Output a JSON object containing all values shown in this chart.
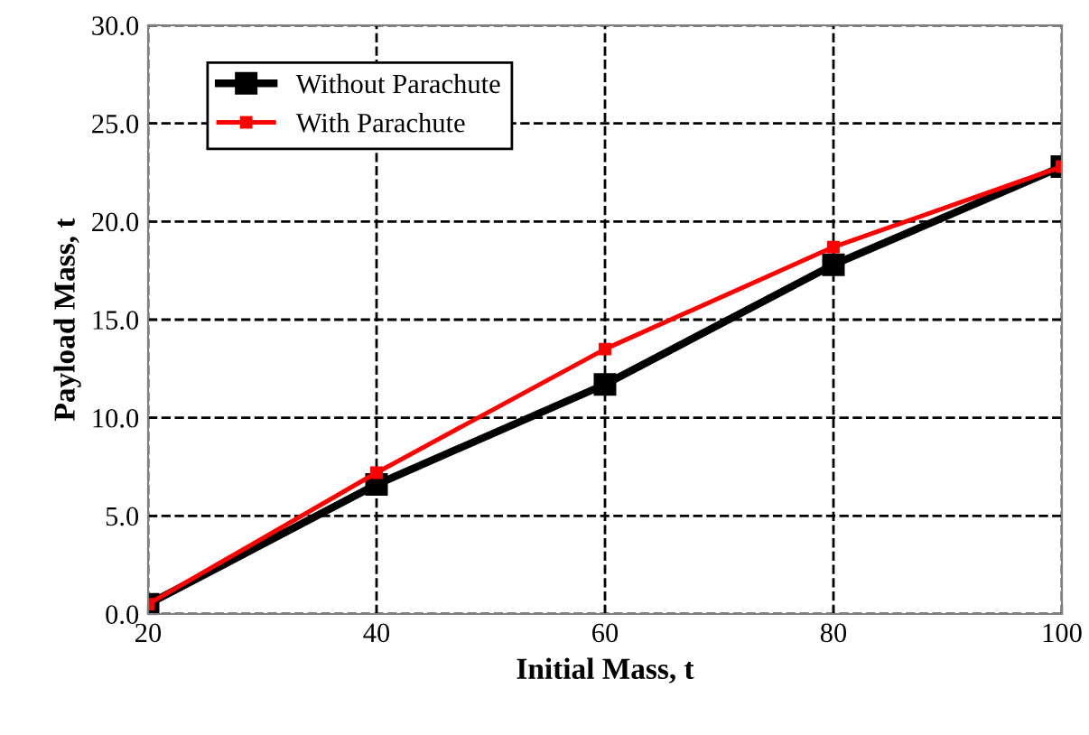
{
  "chart_data": {
    "type": "line",
    "xlabel": "Initial Mass, t",
    "ylabel": "Payload Mass, t",
    "x": [
      20,
      40,
      60,
      80,
      100
    ],
    "series": [
      {
        "name": "Without Parachute",
        "color": "#000000",
        "values": [
          0.5,
          6.6,
          11.7,
          17.8,
          22.8
        ]
      },
      {
        "name": "With Parachute",
        "color": "#ff0000",
        "values": [
          0.5,
          7.2,
          13.5,
          18.7,
          22.8
        ]
      }
    ],
    "xlim": [
      20,
      100
    ],
    "xticks": [
      20,
      40,
      60,
      80,
      100
    ],
    "ylim": [
      0,
      30
    ],
    "yticks": [
      {
        "value": 0,
        "label": "0.0"
      },
      {
        "value": 5,
        "label": "5.0"
      },
      {
        "value": 10,
        "label": "10.0"
      },
      {
        "value": 15,
        "label": "15.0"
      },
      {
        "value": 20,
        "label": "20.0"
      },
      {
        "value": 25,
        "label": "25.0"
      },
      {
        "value": 30,
        "label": "30.0"
      }
    ],
    "grid": true,
    "legend": "top left",
    "marker": "square",
    "line_style": "solid"
  }
}
